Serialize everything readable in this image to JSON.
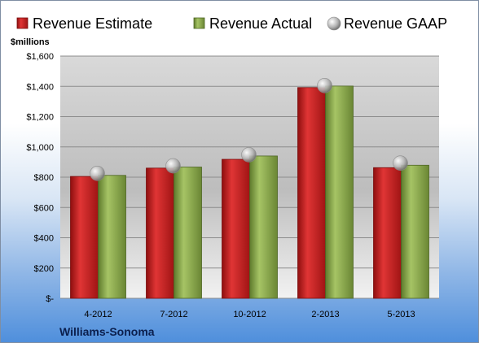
{
  "chart_data": {
    "type": "bar",
    "title": "",
    "ylabel": "$millions",
    "xlabel": "",
    "company": "Williams-Sonoma",
    "categories": [
      "4-2012",
      "7-2012",
      "10-2012",
      "2-2013",
      "5-2013"
    ],
    "series": [
      {
        "name": "Revenue Estimate",
        "kind": "bar",
        "color": "#cc1f1f",
        "values": [
          805,
          860,
          918,
          1392,
          863
        ]
      },
      {
        "name": "Revenue Actual",
        "kind": "bar",
        "color": "#8aa84a",
        "values": [
          812,
          867,
          940,
          1402,
          879
        ]
      },
      {
        "name": "Revenue GAAP",
        "kind": "marker",
        "color": "#a8a8a8",
        "values": [
          825,
          875,
          948,
          1405,
          893
        ]
      }
    ],
    "ylim": [
      0,
      1600
    ],
    "yticks": [
      0,
      200,
      400,
      600,
      800,
      1000,
      1200,
      1400,
      1600
    ],
    "ytick_labels": [
      "$-",
      "$200",
      "$400",
      "$600",
      "$800",
      "$1,000",
      "$1,200",
      "$1,400",
      "$1,600"
    ],
    "grid": true,
    "legend_position": "top"
  }
}
